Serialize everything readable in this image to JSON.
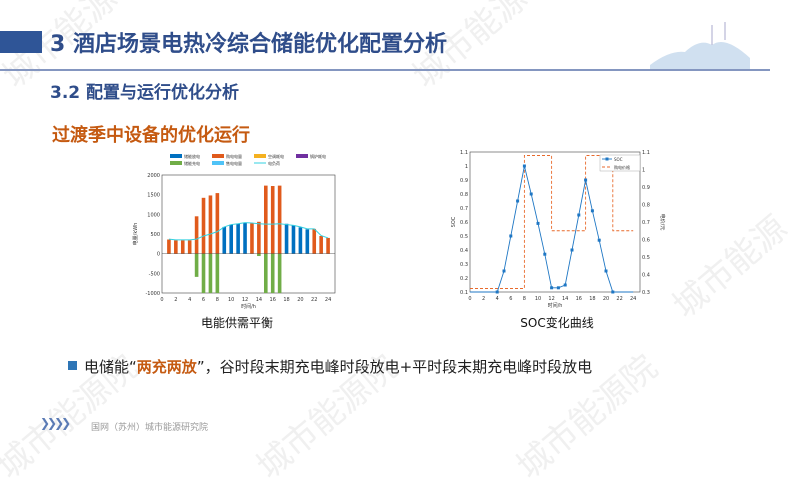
{
  "header": {
    "title": "3 酒店场景电热冷综合储能优化配置分析",
    "subtitle": "3.2 配置与运行优化分析"
  },
  "section_title": "过渡季中设备的优化运行",
  "watermark": "城市能源院",
  "colors": {
    "discharge": "#0070c0",
    "purchase": "#e05a1c",
    "ac": "#f5b120",
    "boiler": "#7030a0",
    "charge": "#70ad47",
    "sell": "#4fc3f7",
    "load": "#33d1e0",
    "soc": "#1f77c4",
    "price": "#e86a2c",
    "title_blue": "#2f4d8a",
    "accent_orange": "#c55a11"
  },
  "chart_data": [
    {
      "type": "bar",
      "caption": "电能供需平衡",
      "xlabel": "时间/h",
      "ylabel": "电量/kWh",
      "xlim": [
        0,
        25
      ],
      "ylim": [
        -1000,
        2000
      ],
      "xticks": [
        0,
        2,
        4,
        6,
        8,
        10,
        12,
        14,
        16,
        18,
        20,
        22,
        24
      ],
      "yticks": [
        -1000,
        -500,
        0,
        500,
        1000,
        1500,
        2000
      ],
      "legend": [
        "储能放电",
        "购电电量",
        "空调耗电",
        "锅炉耗电",
        "储能充电",
        "售电电量",
        "电负荷"
      ],
      "x": [
        1,
        2,
        3,
        4,
        5,
        6,
        7,
        8,
        9,
        10,
        11,
        12,
        13,
        14,
        15,
        16,
        17,
        18,
        19,
        20,
        21,
        22,
        23,
        24
      ],
      "series": [
        {
          "name": "储能放电",
          "values": [
            0,
            0,
            0,
            0,
            0,
            0,
            0,
            0,
            680,
            740,
            760,
            790,
            0,
            0,
            0,
            0,
            0,
            760,
            720,
            670,
            620,
            0,
            0,
            0
          ]
        },
        {
          "name": "购电电量",
          "values": [
            360,
            340,
            340,
            340,
            950,
            1420,
            1480,
            1540,
            0,
            0,
            0,
            0,
            770,
            810,
            1730,
            1720,
            1730,
            0,
            0,
            0,
            0,
            630,
            450,
            400
          ]
        },
        {
          "name": "储能充电",
          "values": [
            0,
            0,
            0,
            0,
            -590,
            -1000,
            -1000,
            -1000,
            0,
            0,
            0,
            0,
            0,
            -60,
            -1000,
            -1000,
            -1000,
            0,
            0,
            0,
            0,
            0,
            0,
            0
          ]
        },
        {
          "name": "电负荷",
          "values": [
            370,
            350,
            350,
            350,
            370,
            450,
            500,
            560,
            680,
            740,
            760,
            790,
            780,
            760,
            750,
            750,
            760,
            740,
            720,
            680,
            630,
            630,
            460,
            400
          ]
        }
      ]
    },
    {
      "type": "line",
      "caption": "SOC变化曲线",
      "xlabel": "时间/h",
      "ylabel": "SOC",
      "y2label": "电价/元",
      "xlim": [
        0,
        25
      ],
      "ylim": [
        0.1,
        1.1
      ],
      "y2lim": [
        0.3,
        1.1
      ],
      "xticks": [
        0,
        2,
        4,
        6,
        8,
        10,
        12,
        14,
        16,
        18,
        20,
        22,
        24
      ],
      "yticks": [
        0.1,
        0.2,
        0.3,
        0.4,
        0.5,
        0.6,
        0.7,
        0.8,
        0.9,
        1,
        1.1
      ],
      "y2ticks": [
        0.3,
        0.4,
        0.5,
        0.6,
        0.7,
        0.8,
        0.9,
        1,
        1.1
      ],
      "legend": [
        "SOC",
        "购电价格"
      ],
      "soc": {
        "x": [
          4,
          5,
          6,
          7,
          8,
          9,
          10,
          11,
          12,
          13,
          14,
          15,
          16,
          17,
          18,
          19,
          20,
          21
        ],
        "values": [
          0.1,
          0.25,
          0.5,
          0.75,
          1.0,
          0.8,
          0.59,
          0.37,
          0.13,
          0.13,
          0.15,
          0.4,
          0.65,
          0.9,
          0.68,
          0.47,
          0.25,
          0.1
        ]
      },
      "price": {
        "x": [
          0,
          8,
          8,
          12,
          12,
          17,
          17,
          21,
          21,
          24
        ],
        "values": [
          0.32,
          0.32,
          1.08,
          1.08,
          0.65,
          0.65,
          1.08,
          1.08,
          0.65,
          0.65
        ]
      }
    }
  ],
  "bullet": {
    "prefix": "电储能",
    "quote_open": "“",
    "highlight": "两充两放",
    "quote_close": "”",
    "rest": "，谷时段末期充电峰时段放电+平时段末期充电峰时段放电"
  },
  "footer": {
    "chevrons": "❯❯❯❯",
    "org": "国网（苏州）城市能源研究院"
  }
}
